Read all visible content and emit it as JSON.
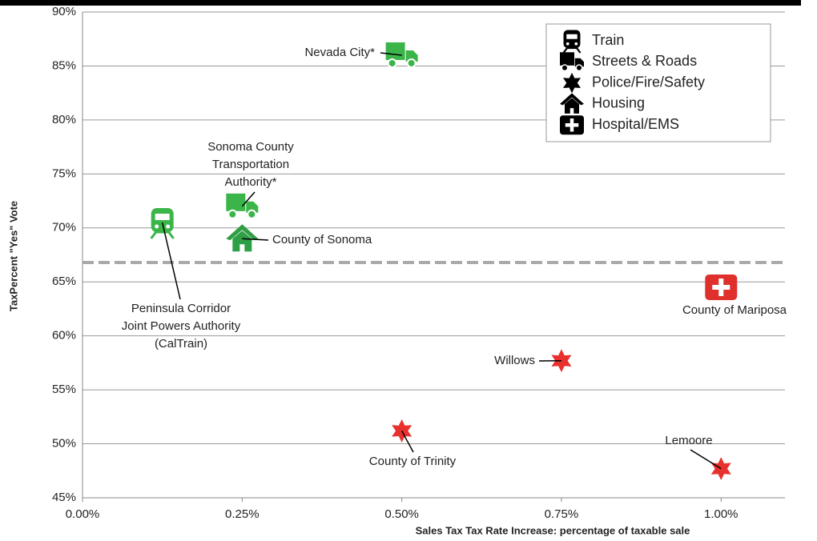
{
  "chart_data": {
    "type": "scatter",
    "x_label": "Sales Tax Tax Rate Increase: percentage of taxable sale",
    "y_label": "TaxPercent \"Yes\" Vote",
    "xlim": [
      0,
      1.1
    ],
    "ylim": [
      45,
      90
    ],
    "xticks": [
      {
        "value": 0,
        "label": "0.00%"
      },
      {
        "value": 0.25,
        "label": "0.25%"
      },
      {
        "value": 0.5,
        "label": "0.50%"
      },
      {
        "value": 0.75,
        "label": "0.75%"
      },
      {
        "value": 1.0,
        "label": "1.00%"
      }
    ],
    "yticks": [
      {
        "value": 45,
        "label": "45%"
      },
      {
        "value": 50,
        "label": "50%"
      },
      {
        "value": 55,
        "label": "55%"
      },
      {
        "value": 60,
        "label": "60%"
      },
      {
        "value": 65,
        "label": "65%"
      },
      {
        "value": 70,
        "label": "70%"
      },
      {
        "value": 75,
        "label": "75%"
      },
      {
        "value": 80,
        "label": "80%"
      },
      {
        "value": 85,
        "label": "85%"
      },
      {
        "value": 90,
        "label": "90%"
      }
    ],
    "grid": true,
    "hline": 66.8,
    "legend": "top-right",
    "series": [
      {
        "name": "Train",
        "marker": "train",
        "color": "#3bb54a",
        "x": [
          0.125
        ],
        "values": [
          70.5
        ],
        "labels": [
          [
            "Peninsula Corridor",
            "Joint Powers Authority",
            "(CalTrain)"
          ]
        ]
      },
      {
        "name": "Streets & Roads",
        "marker": "truck",
        "color": "#3bb54a",
        "x": [
          0.5,
          0.25
        ],
        "values": [
          86,
          72
        ],
        "labels": [
          [
            "Nevada City*"
          ],
          [
            "Sonoma County",
            "Transportation",
            "Authority*"
          ]
        ]
      },
      {
        "name": "Police/Fire/Safety",
        "marker": "star",
        "color": "#e8302f",
        "x": [
          0.75,
          0.5,
          1.0
        ],
        "values": [
          57.7,
          51.2,
          47.7
        ],
        "labels": [
          [
            "Willows"
          ],
          [
            "County of Trinity"
          ],
          [
            "Lemoore"
          ]
        ]
      },
      {
        "name": "Housing",
        "marker": "house",
        "color": "#2f9e44",
        "x": [
          0.25
        ],
        "values": [
          69
        ],
        "labels": [
          [
            "County of Sonoma"
          ]
        ]
      },
      {
        "name": "Hospital/EMS",
        "marker": "cross",
        "color": "#e0302c",
        "x": [
          1.0
        ],
        "values": [
          64.5
        ],
        "labels": [
          [
            "County of Mariposa"
          ]
        ]
      }
    ]
  }
}
